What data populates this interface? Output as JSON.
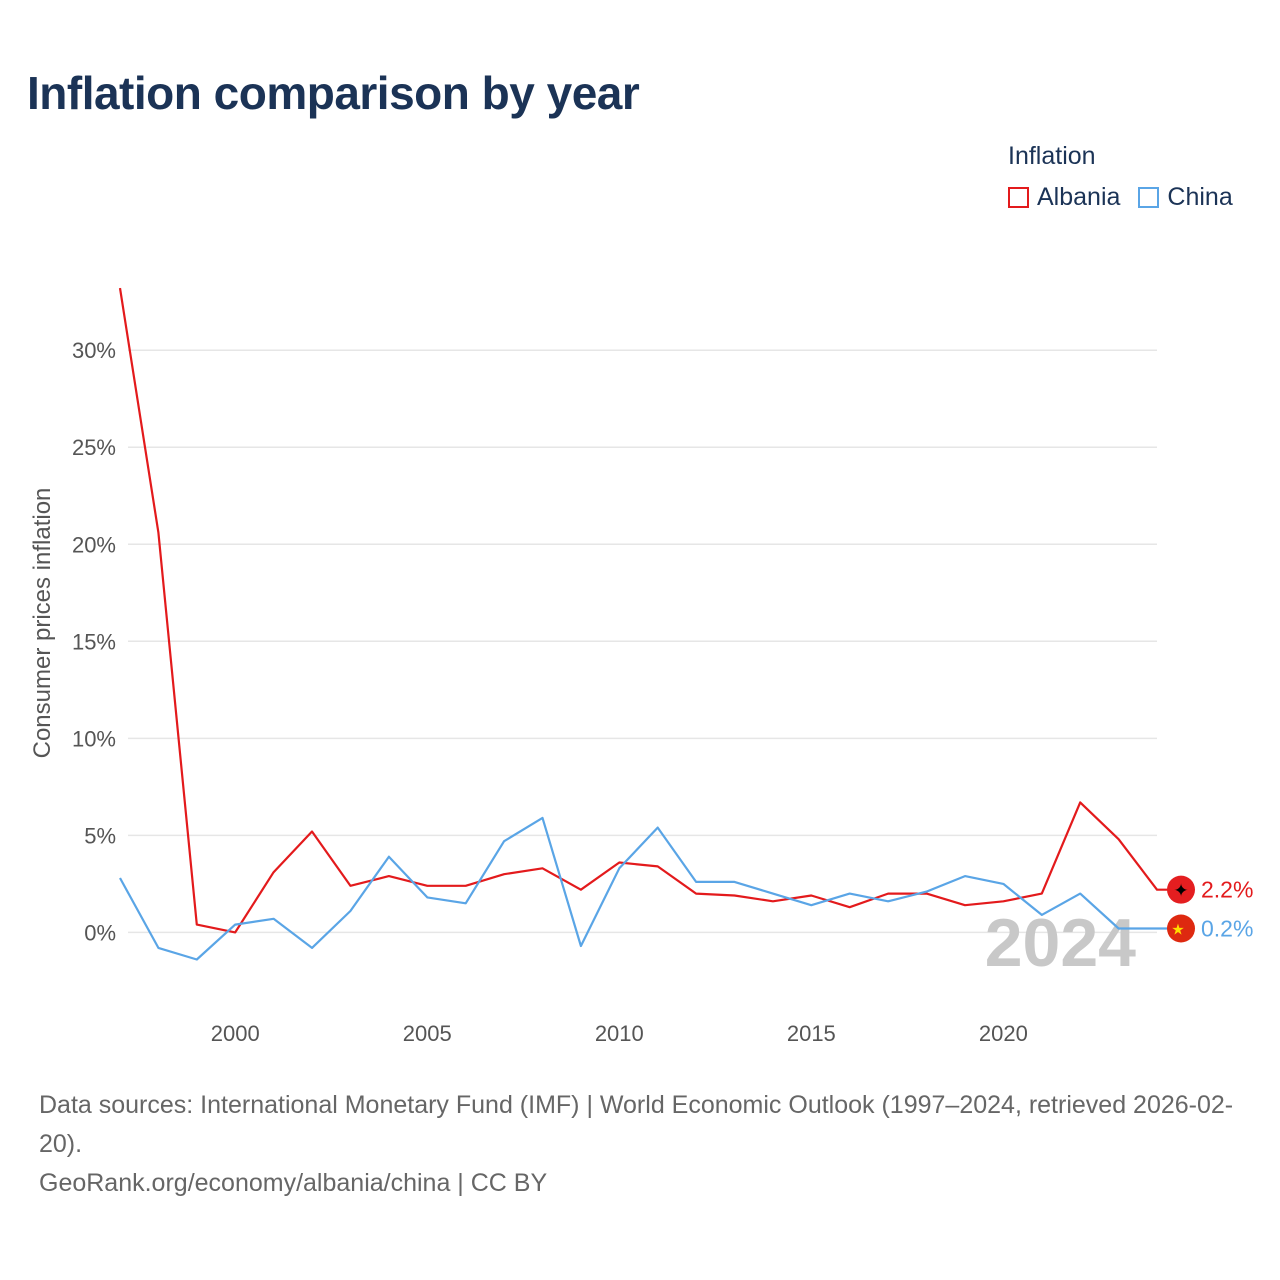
{
  "title": "Inflation comparison by year",
  "legend": {
    "title": "Inflation",
    "items": [
      {
        "label": "Albania",
        "color": "#e31a1c"
      },
      {
        "label": "China",
        "color": "#5aa5e6"
      }
    ]
  },
  "chart_data": {
    "type": "line",
    "title": "Inflation comparison by year",
    "xlabel": "",
    "ylabel": "Consumer prices inflation",
    "x": [
      1997,
      1998,
      1999,
      2000,
      2001,
      2002,
      2003,
      2004,
      2005,
      2006,
      2007,
      2008,
      2009,
      2010,
      2011,
      2012,
      2013,
      2014,
      2015,
      2016,
      2017,
      2018,
      2019,
      2020,
      2021,
      2022,
      2023,
      2024
    ],
    "xlim": [
      1997,
      2024
    ],
    "ylim": [
      -4,
      33
    ],
    "x_ticks": [
      2000,
      2005,
      2010,
      2015,
      2020
    ],
    "x_tick_labels": [
      "2000",
      "2005",
      "2010",
      "2015",
      "2020"
    ],
    "y_ticks": [
      0,
      5,
      10,
      15,
      20,
      25,
      30
    ],
    "y_tick_labels": [
      "0%",
      "5%",
      "10%",
      "15%",
      "20%",
      "25%",
      "30%"
    ],
    "grid": true,
    "series": [
      {
        "name": "Albania",
        "color": "#e31a1c",
        "values": [
          33.2,
          20.6,
          0.4,
          0.0,
          3.1,
          5.2,
          2.4,
          2.9,
          2.4,
          2.4,
          3.0,
          3.3,
          2.2,
          3.6,
          3.4,
          2.0,
          1.9,
          1.6,
          1.9,
          1.3,
          2.0,
          2.0,
          1.4,
          1.6,
          2.0,
          6.7,
          4.8,
          2.2
        ],
        "end_label": "2.2%"
      },
      {
        "name": "China",
        "color": "#5aa5e6",
        "values": [
          2.8,
          -0.8,
          -1.4,
          0.4,
          0.7,
          -0.8,
          1.1,
          3.9,
          1.8,
          1.5,
          4.7,
          5.9,
          -0.7,
          3.3,
          5.4,
          2.6,
          2.6,
          2.0,
          1.4,
          2.0,
          1.6,
          2.1,
          2.9,
          2.5,
          0.9,
          2.0,
          0.2,
          0.2
        ],
        "end_label": "0.2%"
      }
    ],
    "year_label": "2024"
  },
  "footer": {
    "sources": "Data sources: International Monetary Fund (IMF) | World Economic Outlook (1997–2024, retrieved 2026-02-20).",
    "credit": "GeoRank.org/economy/albania/china | CC BY"
  }
}
